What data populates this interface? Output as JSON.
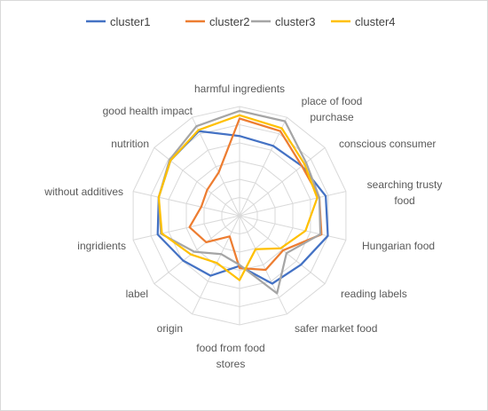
{
  "chart_data": {
    "type": "radar",
    "categories": [
      "harmful ingredients",
      "place of food purchase",
      "conscious consumer",
      "searching trusty food",
      "Hungarian food",
      "reading labels",
      "safer market food",
      "food from food stores",
      "origin",
      "label",
      "ingridients",
      "without additives",
      "nutrition",
      "good health impact"
    ],
    "series": [
      {
        "name": "cluster1",
        "color": "#4472c4",
        "values": [
          0.73,
          0.71,
          0.73,
          0.81,
          0.83,
          0.72,
          0.69,
          0.46,
          0.61,
          0.66,
          0.77,
          0.76,
          0.81,
          0.86
        ]
      },
      {
        "name": "cluster2",
        "color": "#ed7d31",
        "values": [
          0.89,
          0.86,
          0.73,
          0.75,
          0.77,
          0.51,
          0.55,
          0.48,
          0.21,
          0.39,
          0.47,
          0.36,
          0.38,
          0.44
        ]
      },
      {
        "name": "cluster3",
        "color": "#a5a5a5",
        "values": [
          0.96,
          0.96,
          0.78,
          0.75,
          0.76,
          0.55,
          0.79,
          0.45,
          0.39,
          0.53,
          0.74,
          0.76,
          0.82,
          0.91
        ]
      },
      {
        "name": "cluster4",
        "color": "#ffc000",
        "values": [
          0.92,
          0.89,
          0.76,
          0.73,
          0.62,
          0.48,
          0.34,
          0.59,
          0.48,
          0.57,
          0.73,
          0.76,
          0.81,
          0.87
        ]
      }
    ],
    "r_range": [
      0,
      1
    ],
    "rings": 6,
    "grid": true,
    "legend_position": "top"
  }
}
